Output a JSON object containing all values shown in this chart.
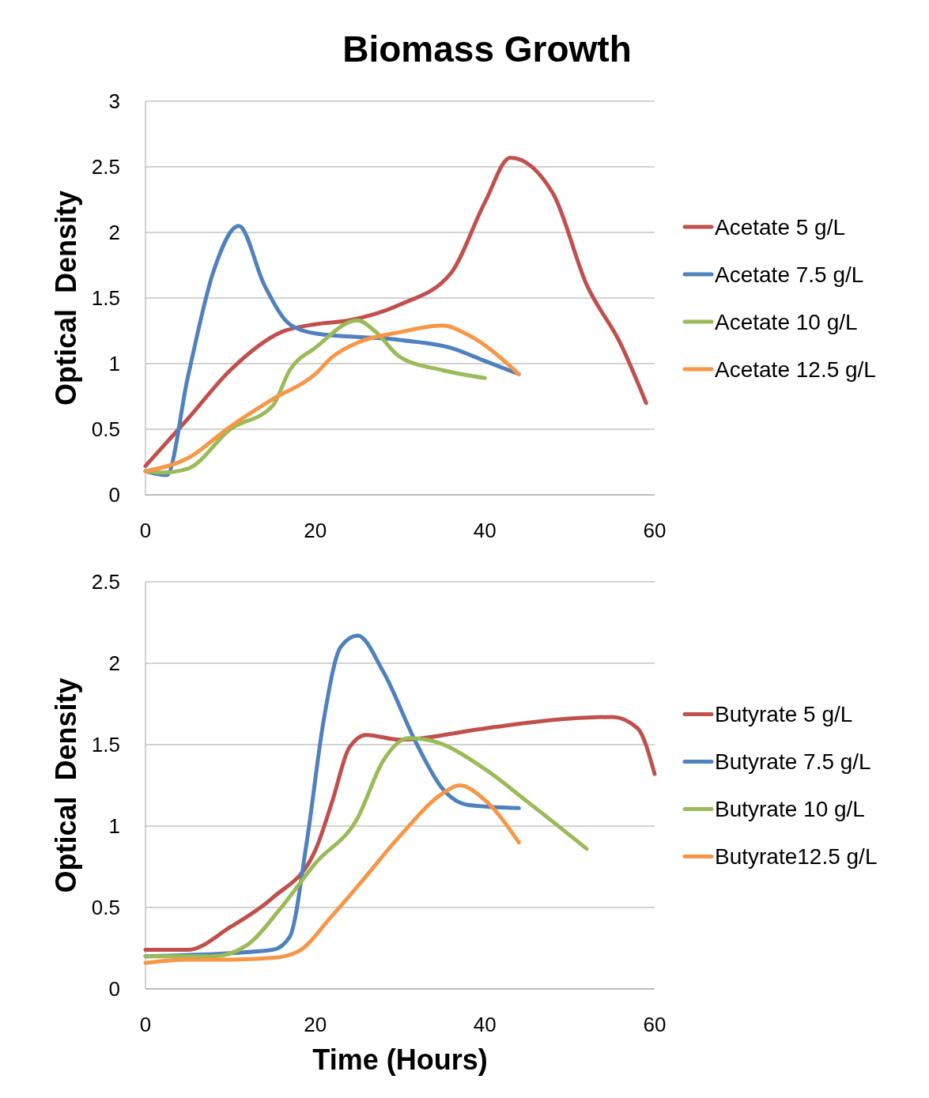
{
  "chart_data": [
    {
      "type": "line",
      "title": "Biomass Growth",
      "ylabel": "Optical  Density",
      "xlim": [
        0,
        60
      ],
      "xticks": [
        0,
        20,
        40,
        60
      ],
      "ylim": [
        0,
        3
      ],
      "yticks": [
        0,
        0.5,
        1,
        1.5,
        2,
        2.5,
        3
      ],
      "grid": "y",
      "legend": "right",
      "marker": "none",
      "line_style": "solid",
      "series": [
        {
          "name": "Acetate 5 g/L",
          "color": "#c0504d",
          "x": [
            0,
            5,
            10,
            16,
            20,
            24,
            30,
            36,
            40,
            43,
            48,
            52,
            56,
            59
          ],
          "values": [
            0.22,
            0.58,
            0.95,
            1.24,
            1.3,
            1.33,
            1.45,
            1.69,
            2.23,
            2.57,
            2.3,
            1.6,
            1.15,
            0.7
          ]
        },
        {
          "name": "Acetate 7.5 g/L",
          "color": "#4f81bd",
          "x": [
            0,
            2.5,
            5,
            8,
            11,
            14,
            17,
            20,
            30,
            36,
            40,
            44
          ],
          "values": [
            0.18,
            0.15,
            0.9,
            1.7,
            2.05,
            1.6,
            1.3,
            1.23,
            1.18,
            1.12,
            1.02,
            0.92
          ]
        },
        {
          "name": "Acetate 10 g/L",
          "color": "#9bbb59",
          "x": [
            0,
            2,
            5,
            10,
            15,
            17,
            20,
            25,
            27,
            30,
            35,
            40
          ],
          "values": [
            0.18,
            0.17,
            0.2,
            0.5,
            0.68,
            0.95,
            1.12,
            1.33,
            1.25,
            1.05,
            0.95,
            0.89
          ]
        },
        {
          "name": "Acetate 12.5 g/L",
          "color": "#f79646",
          "x": [
            0,
            5,
            10,
            15,
            20,
            22,
            25,
            30,
            35,
            38,
            44
          ],
          "values": [
            0.18,
            0.28,
            0.52,
            0.73,
            0.92,
            1.05,
            1.16,
            1.24,
            1.29,
            1.22,
            0.92
          ]
        }
      ]
    },
    {
      "type": "line",
      "xlabel": "Time (Hours)",
      "ylabel": "Optical  Density",
      "xlim": [
        0,
        60
      ],
      "xticks": [
        0,
        20,
        40,
        60
      ],
      "ylim": [
        0,
        2.5
      ],
      "yticks": [
        0,
        0.5,
        1,
        1.5,
        2,
        2.5
      ],
      "grid": "y",
      "legend": "right",
      "marker": "none",
      "line_style": "solid",
      "series": [
        {
          "name": "Butyrate 5 g/L",
          "color": "#c0504d",
          "x": [
            0,
            5,
            10,
            15,
            20,
            22,
            24,
            26,
            30,
            40,
            50,
            55,
            58,
            60
          ],
          "values": [
            0.24,
            0.24,
            0.38,
            0.56,
            0.85,
            1.15,
            1.48,
            1.56,
            1.53,
            1.6,
            1.66,
            1.67,
            1.6,
            1.32
          ]
        },
        {
          "name": "Butyrate 7.5 g/L",
          "color": "#4f81bd",
          "x": [
            0,
            10,
            15,
            17,
            19,
            21,
            23,
            25,
            28,
            32,
            35,
            38,
            44
          ],
          "values": [
            0.2,
            0.22,
            0.24,
            0.32,
            0.9,
            1.65,
            2.1,
            2.17,
            1.95,
            1.5,
            1.23,
            1.13,
            1.11
          ]
        },
        {
          "name": "Butyrate 10 g/L",
          "color": "#9bbb59",
          "x": [
            0,
            8,
            12,
            16,
            20,
            25,
            28,
            31,
            34,
            40,
            45,
            52
          ],
          "values": [
            0.2,
            0.2,
            0.27,
            0.5,
            0.77,
            1.05,
            1.4,
            1.54,
            1.52,
            1.35,
            1.15,
            0.86
          ]
        },
        {
          "name": "Butyrate12.5 g/L",
          "color": "#f79646",
          "x": [
            0,
            5,
            10,
            15,
            18,
            22,
            25,
            30,
            35,
            37,
            40,
            44
          ],
          "values": [
            0.16,
            0.18,
            0.18,
            0.19,
            0.23,
            0.45,
            0.63,
            0.94,
            1.2,
            1.25,
            1.16,
            0.9
          ]
        }
      ]
    }
  ]
}
